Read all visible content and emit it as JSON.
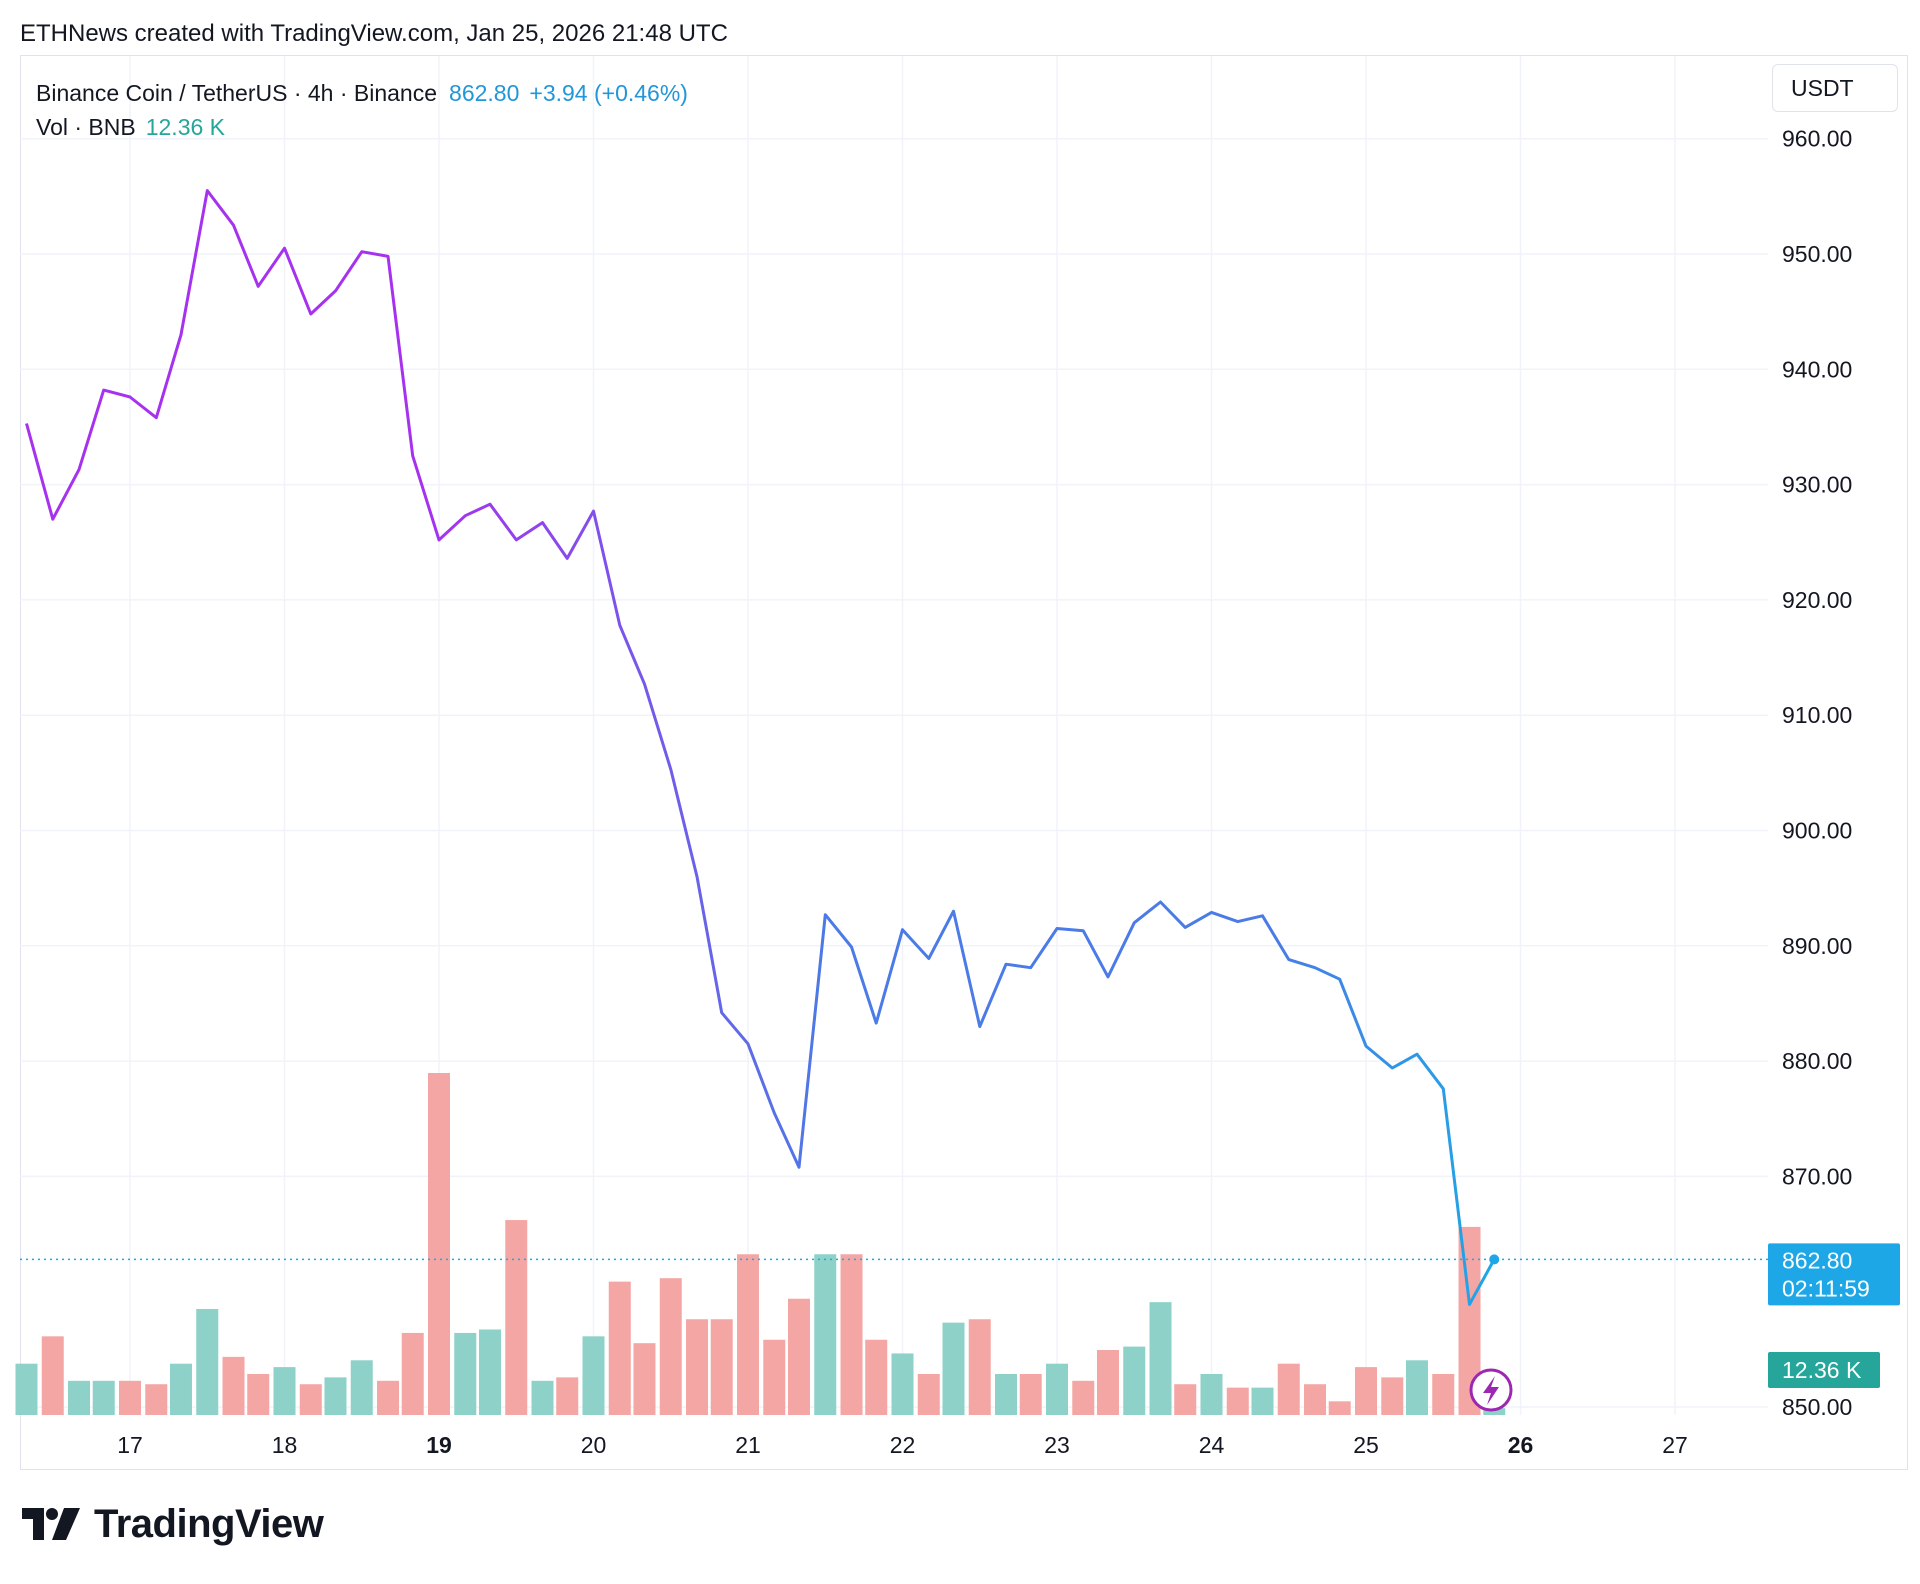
{
  "header": {
    "attribution": "ETHNews created with TradingView.com, Jan 25, 2026 21:48 UTC"
  },
  "legend": {
    "symbol": "Binance Coin / TetherUS · 4h · Binance",
    "price": "862.80",
    "change": "+3.94 (+0.46%)",
    "vol_label": "Vol · BNB",
    "vol_value": "12.36 K"
  },
  "currency_button": "USDT",
  "price_tag": {
    "value": "862.80",
    "countdown": "02:11:59"
  },
  "volume_tag": "12.36 K",
  "footer": {
    "brand": "TradingView"
  },
  "colors": {
    "line_start": "#a632f0",
    "line_mid": "#4a7be6",
    "line_end": "#1ea7e6",
    "vol_up": "#8ed1c8",
    "vol_down": "#f4a6a4",
    "price_tag_bg": "#1ea7e6",
    "vol_tag_bg": "#26a69a",
    "grid": "#f0f3fa"
  },
  "chart_data": {
    "type": "line",
    "title": "",
    "xlabel": "",
    "ylabel": "",
    "x_ticks": [
      "17",
      "18",
      "19",
      "20",
      "21",
      "22",
      "23",
      "24",
      "25",
      "26",
      "27"
    ],
    "x_ticks_bold": [
      "19",
      "26"
    ],
    "y_ticks": [
      "960.00",
      "950.00",
      "940.00",
      "930.00",
      "920.00",
      "910.00",
      "900.00",
      "890.00",
      "880.00",
      "870.00",
      "850.00"
    ],
    "ylim": [
      845,
      970
    ],
    "xlim": [
      16.3,
      27.5
    ],
    "grid": true,
    "series": [
      {
        "values": [
          [
            16.33,
            935.3
          ],
          [
            16.5,
            927.0
          ],
          [
            16.67,
            931.3
          ],
          [
            16.83,
            938.2
          ],
          [
            17.0,
            937.6
          ],
          [
            17.17,
            935.8
          ],
          [
            17.33,
            943.0
          ],
          [
            17.5,
            955.5
          ],
          [
            17.67,
            952.5
          ],
          [
            17.83,
            947.2
          ],
          [
            18.0,
            950.5
          ],
          [
            18.17,
            944.8
          ],
          [
            18.33,
            946.8
          ],
          [
            18.5,
            950.2
          ],
          [
            18.67,
            949.8
          ],
          [
            18.83,
            932.5
          ],
          [
            19.0,
            925.2
          ],
          [
            19.17,
            927.3
          ],
          [
            19.33,
            928.3
          ],
          [
            19.5,
            925.2
          ],
          [
            19.67,
            926.7
          ],
          [
            19.83,
            923.6
          ],
          [
            20.0,
            927.7
          ],
          [
            20.17,
            917.8
          ],
          [
            20.33,
            912.7
          ],
          [
            20.5,
            905.3
          ],
          [
            20.67,
            896.0
          ],
          [
            20.83,
            884.2
          ],
          [
            21.0,
            881.5
          ],
          [
            21.17,
            875.5
          ],
          [
            21.33,
            870.8
          ],
          [
            21.5,
            892.7
          ],
          [
            21.67,
            889.9
          ],
          [
            21.83,
            883.3
          ],
          [
            22.0,
            891.4
          ],
          [
            22.17,
            888.9
          ],
          [
            22.33,
            893.0
          ],
          [
            22.5,
            883.0
          ],
          [
            22.67,
            888.4
          ],
          [
            22.83,
            888.1
          ],
          [
            23.0,
            891.5
          ],
          [
            23.17,
            891.3
          ],
          [
            23.33,
            887.3
          ],
          [
            23.5,
            892.0
          ],
          [
            23.67,
            893.8
          ],
          [
            23.83,
            891.6
          ],
          [
            24.0,
            892.9
          ],
          [
            24.17,
            892.1
          ],
          [
            24.33,
            892.6
          ],
          [
            24.5,
            888.8
          ],
          [
            24.67,
            888.1
          ],
          [
            24.83,
            887.1
          ],
          [
            25.0,
            881.3
          ],
          [
            25.17,
            879.4
          ],
          [
            25.33,
            880.6
          ],
          [
            25.5,
            877.6
          ],
          [
            25.67,
            858.9
          ],
          [
            25.83,
            862.8
          ]
        ]
      }
    ],
    "last_price": 862.8
  },
  "volume_data": {
    "bars": [
      [
        16.33,
        0.15,
        "up"
      ],
      [
        16.5,
        0.23,
        "down"
      ],
      [
        16.67,
        0.1,
        "up"
      ],
      [
        16.83,
        0.1,
        "up"
      ],
      [
        17.0,
        0.1,
        "down"
      ],
      [
        17.17,
        0.09,
        "down"
      ],
      [
        17.33,
        0.15,
        "up"
      ],
      [
        17.5,
        0.31,
        "up"
      ],
      [
        17.67,
        0.17,
        "down"
      ],
      [
        17.83,
        0.12,
        "down"
      ],
      [
        18.0,
        0.14,
        "up"
      ],
      [
        18.17,
        0.09,
        "down"
      ],
      [
        18.33,
        0.11,
        "up"
      ],
      [
        18.5,
        0.16,
        "up"
      ],
      [
        18.67,
        0.1,
        "down"
      ],
      [
        18.83,
        0.24,
        "down"
      ],
      [
        19.0,
        1.0,
        "down"
      ],
      [
        19.17,
        0.24,
        "up"
      ],
      [
        19.33,
        0.25,
        "up"
      ],
      [
        19.5,
        0.57,
        "down"
      ],
      [
        19.67,
        0.1,
        "up"
      ],
      [
        19.83,
        0.11,
        "down"
      ],
      [
        20.0,
        0.23,
        "up"
      ],
      [
        20.17,
        0.39,
        "down"
      ],
      [
        20.33,
        0.21,
        "down"
      ],
      [
        20.5,
        0.4,
        "down"
      ],
      [
        20.67,
        0.28,
        "down"
      ],
      [
        20.83,
        0.28,
        "down"
      ],
      [
        21.0,
        0.47,
        "down"
      ],
      [
        21.17,
        0.22,
        "down"
      ],
      [
        21.33,
        0.34,
        "down"
      ],
      [
        21.5,
        0.47,
        "up"
      ],
      [
        21.67,
        0.47,
        "down"
      ],
      [
        21.83,
        0.22,
        "down"
      ],
      [
        22.0,
        0.18,
        "up"
      ],
      [
        22.17,
        0.12,
        "down"
      ],
      [
        22.33,
        0.27,
        "up"
      ],
      [
        22.5,
        0.28,
        "down"
      ],
      [
        22.67,
        0.12,
        "up"
      ],
      [
        22.83,
        0.12,
        "down"
      ],
      [
        23.0,
        0.15,
        "up"
      ],
      [
        23.17,
        0.1,
        "down"
      ],
      [
        23.33,
        0.19,
        "down"
      ],
      [
        23.5,
        0.2,
        "up"
      ],
      [
        23.67,
        0.33,
        "up"
      ],
      [
        23.83,
        0.09,
        "down"
      ],
      [
        24.0,
        0.12,
        "up"
      ],
      [
        24.17,
        0.08,
        "down"
      ],
      [
        24.33,
        0.08,
        "up"
      ],
      [
        24.5,
        0.15,
        "down"
      ],
      [
        24.67,
        0.09,
        "down"
      ],
      [
        24.83,
        0.04,
        "down"
      ],
      [
        25.0,
        0.14,
        "down"
      ],
      [
        25.17,
        0.11,
        "down"
      ],
      [
        25.33,
        0.16,
        "up"
      ],
      [
        25.5,
        0.12,
        "down"
      ],
      [
        25.67,
        0.55,
        "down"
      ],
      [
        25.83,
        0.02,
        "up"
      ]
    ]
  }
}
